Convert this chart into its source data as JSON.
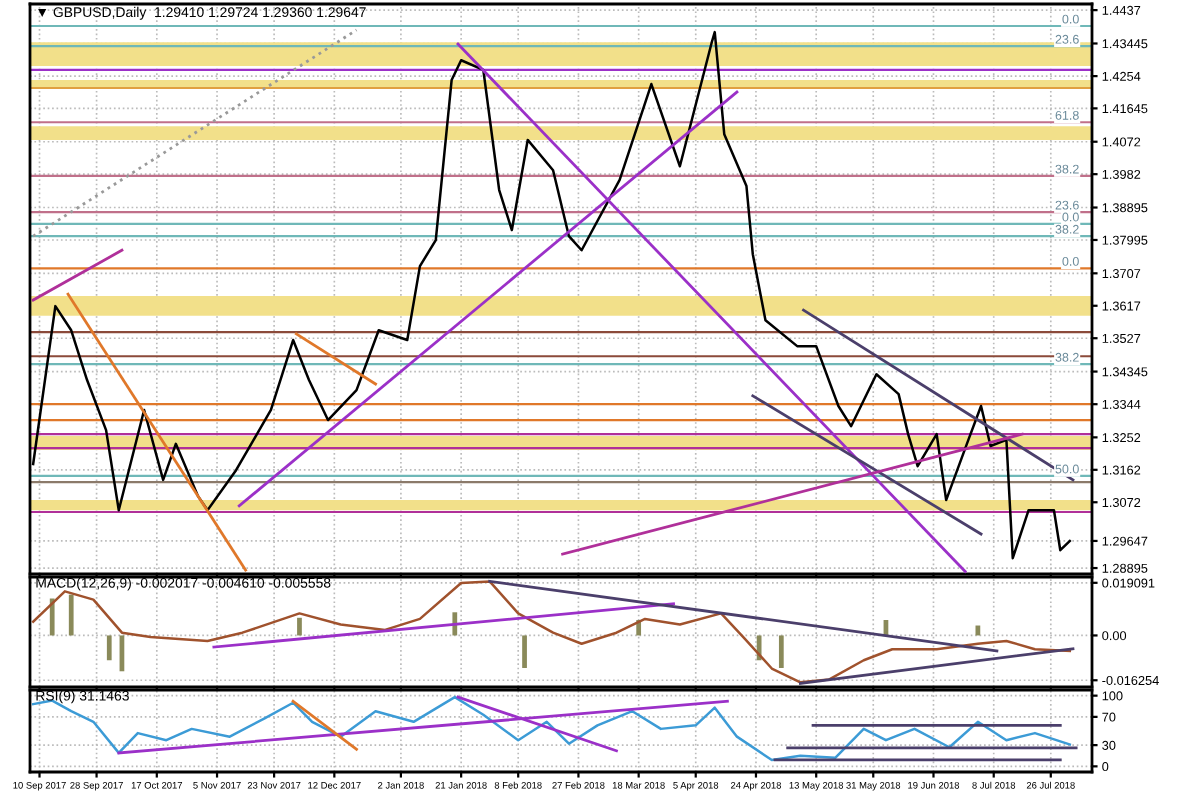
{
  "chart_data": [
    {
      "type": "line",
      "title": "▼ GBPUSD,Daily  1.29410 1.29724 1.29360 1.29647",
      "tick_labels": "y",
      "grid": true,
      "xlim": [
        "2017-09-07",
        "2018-08-08"
      ],
      "xticks": [
        {
          "value": "2017-09-10",
          "label": null
        },
        {
          "value": "2017-09-28",
          "label": null
        },
        {
          "value": "2017-10-17",
          "label": null
        },
        {
          "value": "2017-11-05",
          "label": null
        },
        {
          "value": "2017-11-23",
          "label": null
        },
        {
          "value": "2017-12-12",
          "label": null
        },
        {
          "value": "2018-01-02",
          "label": null
        },
        {
          "value": "2018-01-21",
          "label": null
        },
        {
          "value": "2018-02-08",
          "label": null
        },
        {
          "value": "2018-02-27",
          "label": null
        },
        {
          "value": "2018-03-18",
          "label": null
        },
        {
          "value": "2018-04-05",
          "label": null
        },
        {
          "value": "2018-04-24",
          "label": null
        },
        {
          "value": "2018-05-13",
          "label": null
        },
        {
          "value": "2018-05-31",
          "label": null
        },
        {
          "value": "2018-06-19",
          "label": null
        },
        {
          "value": "2018-07-08",
          "label": null
        },
        {
          "value": "2018-07-26",
          "label": null
        }
      ],
      "ylim": [
        1.2873,
        1.4454
      ],
      "yticks": [
        1.4437,
        1.43445,
        1.4254,
        1.41645,
        1.4072,
        1.3982,
        1.38895,
        1.37995,
        1.3707,
        1.3617,
        1.3527,
        1.34345,
        1.3344,
        1.3252,
        1.3162,
        1.3072,
        {
          "value": 1.29647,
          "label": "1.29647"
        },
        1.28895
      ],
      "series": [
        {
          "type": "line",
          "color": "#000000",
          "x": [
            "2017-09-08",
            "2017-09-15",
            "2017-09-20",
            "2017-09-25",
            "2017-10-01",
            "2017-10-05",
            "2017-10-13",
            "2017-10-19",
            "2017-10-23",
            "2017-10-30",
            "2017-11-02",
            "2017-11-11",
            "2017-11-22",
            "2017-11-29",
            "2017-12-04",
            "2017-12-10",
            "2017-12-19",
            "2017-12-26",
            "2018-01-04",
            "2018-01-08",
            "2018-01-13",
            "2018-01-18",
            "2018-01-21",
            "2018-01-28",
            "2018-02-02",
            "2018-02-06",
            "2018-02-11",
            "2018-02-19",
            "2018-02-24",
            "2018-02-28",
            "2018-03-12",
            "2018-03-22",
            "2018-03-31",
            "2018-04-10",
            "2018-04-11",
            "2018-04-14",
            "2018-04-21",
            "2018-04-23",
            "2018-04-27",
            "2018-05-07",
            "2018-05-13",
            "2018-05-20",
            "2018-05-24",
            "2018-06-01",
            "2018-06-08",
            "2018-06-11",
            "2018-06-14",
            "2018-06-20",
            "2018-06-23",
            "2018-06-30",
            "2018-07-04",
            "2018-07-07",
            "2018-07-12",
            "2018-07-14",
            "2018-07-19",
            "2018-07-27",
            "2018-07-29",
            "2018-08-01"
          ],
          "values": [
            1.3178,
            1.3616,
            1.3549,
            1.3411,
            1.3272,
            1.305,
            1.3328,
            1.3134,
            1.3234,
            1.3089,
            1.305,
            1.3161,
            1.3328,
            1.3522,
            1.3411,
            1.33,
            1.3383,
            1.3549,
            1.3522,
            1.3727,
            1.3799,
            1.4243,
            1.4298,
            1.4271,
            1.3938,
            1.3827,
            1.4077,
            1.3993,
            1.381,
            1.3771,
            1.3966,
            1.4232,
            1.4004,
            1.4346,
            1.4376,
            1.4093,
            1.3949,
            1.376,
            1.3577,
            1.3505,
            1.3505,
            1.3339,
            1.3283,
            1.3427,
            1.3372,
            1.3261,
            1.3172,
            1.3261,
            1.3078,
            1.3245,
            1.3339,
            1.3228,
            1.3245,
            1.2917,
            1.305,
            1.305,
            1.2939,
            1.29647
          ]
        },
        {
          "type": "line",
          "color": "#9b30c8",
          "x": [
            "2017-11-12",
            "2018-04-18"
          ],
          "values": [
            1.3062,
            1.421
          ]
        },
        {
          "type": "line",
          "color": "#9b30c8",
          "x": [
            "2018-01-20",
            "2018-06-29"
          ],
          "values": [
            1.4343,
            1.288
          ]
        },
        {
          "type": "line",
          "color": "#4b3f6b",
          "x": [
            "2018-05-09",
            "2018-08-02"
          ],
          "values": [
            1.3605,
            1.3134
          ]
        },
        {
          "type": "line",
          "color": "#4b3f6b",
          "x": [
            "2018-04-23",
            "2018-07-04"
          ],
          "values": [
            1.3367,
            1.2984
          ]
        },
        {
          "type": "line",
          "color": "#b0309a",
          "x": [
            "2018-02-22",
            "2018-07-17"
          ],
          "values": [
            1.2928,
            1.3261
          ]
        },
        {
          "type": "line",
          "color": "#e0782a",
          "x": [
            "2017-09-19",
            "2017-11-14"
          ],
          "values": [
            1.3649,
            1.2884
          ]
        },
        {
          "type": "line",
          "color": "#e0782a",
          "x": [
            "2017-11-30",
            "2017-12-25"
          ],
          "values": [
            1.3539,
            1.34
          ]
        },
        {
          "type": "line",
          "color": "#b0309a",
          "x": [
            "2017-09-08",
            "2017-10-06"
          ],
          "values": [
            1.3633,
            1.3771
          ]
        },
        {
          "type": "line",
          "color": "#999999",
          "line_style": "dotted",
          "x": [
            "2017-09-08",
            "2017-12-19"
          ],
          "values": [
            1.381,
            1.4382
          ]
        }
      ],
      "bands": [
        {
          "axis": "y",
          "from": 1.4282,
          "to": 1.4348,
          "color": "#f2e08a"
        },
        {
          "axis": "y",
          "from": 1.4221,
          "to": 1.4243,
          "color": "#f2e08a"
        },
        {
          "axis": "y",
          "from": 1.4077,
          "to": 1.4115,
          "color": "#f2e08a"
        },
        {
          "axis": "y",
          "from": 1.3589,
          "to": 1.3644,
          "color": "#f2e08a"
        },
        {
          "axis": "y",
          "from": 1.3217,
          "to": 1.3256,
          "color": "#f2e08a"
        },
        {
          "axis": "y",
          "from": 1.305,
          "to": 1.3078,
          "color": "#f2e08a"
        }
      ],
      "ref_lines": [
        {
          "axis": "y",
          "value": 1.4393,
          "label": null,
          "color": "#6fb8b8"
        },
        {
          "axis": "y",
          "value": 1.4337,
          "label": null,
          "color": "#6fb8b8"
        },
        {
          "axis": "y",
          "value": 1.4271,
          "label": null,
          "color": "#9b30c8"
        },
        {
          "axis": "y",
          "value": 1.4221,
          "label": null,
          "color": "#e0a040"
        },
        {
          "axis": "y",
          "value": 1.4126,
          "label": null,
          "color": "#c0708a"
        },
        {
          "axis": "y",
          "value": 1.3977,
          "label": null,
          "color": "#c0708a"
        },
        {
          "axis": "y",
          "value": 1.3877,
          "label": null,
          "color": "#c0708a"
        },
        {
          "axis": "y",
          "value": 1.3844,
          "label": null,
          "color": "#6fb8b8"
        },
        {
          "axis": "y",
          "value": 1.381,
          "label": null,
          "color": "#6fb8b8"
        },
        {
          "axis": "y",
          "value": 1.3721,
          "label": null,
          "color": "#e0782a"
        },
        {
          "axis": "y",
          "value": 1.3544,
          "label": null,
          "color": "#8b4a3a"
        },
        {
          "axis": "y",
          "value": 1.3477,
          "label": null,
          "color": "#8b4a3a"
        },
        {
          "axis": "y",
          "value": 1.3455,
          "label": null,
          "color": "#6fb8b8"
        },
        {
          "axis": "y",
          "value": 1.3344,
          "label": null,
          "color": "#e0782a"
        },
        {
          "axis": "y",
          "value": 1.33,
          "label": null,
          "color": "#e0782a"
        },
        {
          "axis": "y",
          "value": 1.3261,
          "label": null,
          "color": "#b0309a"
        },
        {
          "axis": "y",
          "value": 1.3222,
          "label": null,
          "color": "#b0309a"
        },
        {
          "axis": "y",
          "value": 1.3145,
          "label": null,
          "color": "#6fb8b8"
        },
        {
          "axis": "y",
          "value": 1.3128,
          "label": null,
          "color": "#8b7a6a"
        },
        {
          "axis": "y",
          "value": 1.3045,
          "label": null,
          "color": "#b0309a"
        }
      ],
      "annotations": [
        {
          "text": "0.0",
          "x": "2018-08-04",
          "y": 1.4393
        },
        {
          "text": "23.6",
          "x": "2018-08-04",
          "y": 1.4337
        },
        {
          "text": "61.8",
          "x": "2018-08-04",
          "y": 1.4126
        },
        {
          "text": "38.2",
          "x": "2018-08-04",
          "y": 1.3977
        },
        {
          "text": "23.6",
          "x": "2018-08-04",
          "y": 1.3877
        },
        {
          "text": "0.0",
          "x": "2018-08-04",
          "y": 1.3844
        },
        {
          "text": "38.2",
          "x": "2018-08-04",
          "y": 1.381
        },
        {
          "text": "0.0",
          "x": "2018-08-04",
          "y": 1.3721
        },
        {
          "text": "38.2",
          "x": "2018-08-04",
          "y": 1.3455
        },
        {
          "text": "50.0",
          "x": "2018-08-04",
          "y": 1.3145
        }
      ]
    },
    {
      "type": "line",
      "title": "MACD(12,26,9) -0.002017 -0.004610 -0.005558",
      "tick_labels": "y",
      "grid": true,
      "xlim": [
        "2017-09-07",
        "2018-08-08"
      ],
      "xticks": [
        {
          "value": "2017-09-10",
          "label": null
        },
        {
          "value": "2017-09-28",
          "label": null
        },
        {
          "value": "2017-10-17",
          "label": null
        },
        {
          "value": "2017-11-05",
          "label": null
        },
        {
          "value": "2017-11-23",
          "label": null
        },
        {
          "value": "2017-12-12",
          "label": null
        },
        {
          "value": "2018-01-02",
          "label": null
        },
        {
          "value": "2018-01-21",
          "label": null
        },
        {
          "value": "2018-02-08",
          "label": null
        },
        {
          "value": "2018-02-27",
          "label": null
        },
        {
          "value": "2018-03-18",
          "label": null
        },
        {
          "value": "2018-04-05",
          "label": null
        },
        {
          "value": "2018-04-24",
          "label": null
        },
        {
          "value": "2018-05-13",
          "label": null
        },
        {
          "value": "2018-05-31",
          "label": null
        },
        {
          "value": "2018-06-19",
          "label": null
        },
        {
          "value": "2018-07-08",
          "label": null
        },
        {
          "value": "2018-07-26",
          "label": null
        }
      ],
      "ylim": [
        -0.0187,
        0.0212
      ],
      "yticks": [
        {
          "value": 0.019091,
          "label": "0.019091"
        },
        {
          "value": 0,
          "label": "0.00"
        },
        {
          "value": -0.016254,
          "label": "-0.016254"
        }
      ],
      "series": [
        {
          "type": "bar",
          "color": "#8a8a5a",
          "x": [
            "2017-09-14",
            "2017-09-20",
            "2017-10-02",
            "2017-10-06",
            "2017-12-01",
            "2018-01-19",
            "2018-02-10",
            "2018-03-18",
            "2018-04-25",
            "2018-05-02",
            "2018-06-04",
            "2018-07-03"
          ],
          "values": [
            0.0134,
            0.0148,
            -0.009,
            -0.013,
            0.0064,
            0.0084,
            -0.0118,
            0.0056,
            -0.009,
            -0.0118,
            0.0056,
            0.0036
          ]
        },
        {
          "type": "line",
          "color": "#a0522d",
          "x": [
            "2017-09-08",
            "2017-09-18",
            "2017-09-27",
            "2017-10-06",
            "2017-10-15",
            "2017-11-02",
            "2017-11-13",
            "2017-12-01",
            "2017-12-14",
            "2017-12-28",
            "2018-01-08",
            "2018-01-21",
            "2018-01-30",
            "2018-02-08",
            "2018-02-19",
            "2018-02-28",
            "2018-03-11",
            "2018-03-20",
            "2018-03-31",
            "2018-04-13",
            "2018-04-20",
            "2018-04-29",
            "2018-05-08",
            "2018-05-17",
            "2018-05-28",
            "2018-06-06",
            "2018-06-20",
            "2018-07-03",
            "2018-07-12",
            "2018-07-21",
            "2018-08-01"
          ],
          "values": [
            0.005,
            0.016,
            0.013,
            0.001,
            -0.0006,
            -0.002,
            0.001,
            0.008,
            0.004,
            0.002,
            0.006,
            0.019,
            0.0196,
            0.008,
            0.001,
            -0.003,
            0.001,
            0.006,
            0.004,
            0.008,
            -0.0006,
            -0.012,
            -0.017,
            -0.016,
            -0.009,
            -0.005,
            -0.005,
            -0.003,
            -0.002,
            -0.005,
            -0.0056
          ]
        },
        {
          "type": "line",
          "color": "#9b30c8",
          "x": [
            "2017-11-04",
            "2018-03-29"
          ],
          "values": [
            -0.0042,
            0.0115
          ]
        },
        {
          "type": "line",
          "color": "#4b3f6b",
          "x": [
            "2018-01-30",
            "2018-07-09"
          ],
          "values": [
            0.0196,
            -0.0056
          ]
        },
        {
          "type": "line",
          "color": "#4b3f6b",
          "x": [
            "2018-05-08",
            "2018-08-02"
          ],
          "values": [
            -0.0174,
            -0.0048
          ]
        }
      ]
    },
    {
      "type": "line",
      "title": "RSI(9) 31.1463",
      "grid": true,
      "xlim": [
        "2017-09-07",
        "2018-08-08"
      ],
      "xticks": [
        {
          "value": "2017-09-10",
          "label": "10 Sep 2017"
        },
        {
          "value": "2017-09-28",
          "label": "28 Sep 2017"
        },
        {
          "value": "2017-10-17",
          "label": "17 Oct 2017"
        },
        {
          "value": "2017-11-05",
          "label": "5 Nov 2017"
        },
        {
          "value": "2017-11-23",
          "label": "23 Nov 2017"
        },
        {
          "value": "2017-12-12",
          "label": "12 Dec 2017"
        },
        {
          "value": "2018-01-02",
          "label": "2 Jan 2018"
        },
        {
          "value": "2018-01-21",
          "label": "21 Jan 2018"
        },
        {
          "value": "2018-02-08",
          "label": "8 Feb 2018"
        },
        {
          "value": "2018-02-27",
          "label": "27 Feb 2018"
        },
        {
          "value": "2018-03-18",
          "label": "18 Mar 2018"
        },
        {
          "value": "2018-04-05",
          "label": "5 Apr 2018"
        },
        {
          "value": "2018-04-24",
          "label": "24 Apr 2018"
        },
        {
          "value": "2018-05-13",
          "label": "13 May 2018"
        },
        {
          "value": "2018-05-31",
          "label": "31 May 2018"
        },
        {
          "value": "2018-06-19",
          "label": "19 Jun 2018"
        },
        {
          "value": "2018-07-08",
          "label": "8 Jul 2018"
        },
        {
          "value": "2018-07-26",
          "label": "26 Jul 2018"
        }
      ],
      "ylim": [
        -8,
        108
      ],
      "yticks": [
        100,
        70,
        30,
        0
      ],
      "series": [
        {
          "type": "line",
          "color": "#3c9bd6",
          "x": [
            "2017-09-08",
            "2017-09-14",
            "2017-09-20",
            "2017-09-27",
            "2017-10-05",
            "2017-10-11",
            "2017-10-20",
            "2017-10-28",
            "2017-11-09",
            "2017-11-20",
            "2017-11-29",
            "2017-12-05",
            "2017-12-14",
            "2017-12-25",
            "2018-01-06",
            "2018-01-19",
            "2018-01-28",
            "2018-02-08",
            "2018-02-17",
            "2018-02-24",
            "2018-03-05",
            "2018-03-16",
            "2018-03-25",
            "2018-04-05",
            "2018-04-11",
            "2018-04-18",
            "2018-04-29",
            "2018-05-08",
            "2018-05-19",
            "2018-05-28",
            "2018-06-04",
            "2018-06-13",
            "2018-06-24",
            "2018-07-03",
            "2018-07-12",
            "2018-07-21",
            "2018-08-01"
          ],
          "values": [
            88,
            93,
            78,
            63,
            19,
            47,
            37,
            53,
            42,
            68,
            90,
            63,
            42,
            78,
            63,
            98,
            73,
            37,
            63,
            32,
            58,
            78,
            53,
            58,
            83,
            42,
            9,
            15,
            12,
            53,
            37,
            53,
            27,
            63,
            37,
            47,
            31
          ]
        },
        {
          "type": "line",
          "color": "#9b30c8",
          "x": [
            "2017-10-05",
            "2018-04-15"
          ],
          "values": [
            19,
            92
          ]
        },
        {
          "type": "line",
          "color": "#9b30c8",
          "x": [
            "2018-01-20",
            "2018-03-11"
          ],
          "values": [
            98,
            22
          ]
        },
        {
          "type": "line",
          "color": "#e0782a",
          "x": [
            "2017-11-29",
            "2017-12-19"
          ],
          "values": [
            92,
            24
          ]
        },
        {
          "type": "line",
          "color": "#4b3f6b",
          "x": [
            "2018-05-12",
            "2018-07-29"
          ],
          "values": [
            58,
            58
          ]
        },
        {
          "type": "line",
          "color": "#4b3f6b",
          "x": [
            "2018-05-04",
            "2018-08-03"
          ],
          "values": [
            26,
            26
          ]
        },
        {
          "type": "line",
          "color": "#4b3f6b",
          "x": [
            "2018-04-30",
            "2018-07-29"
          ],
          "values": [
            9,
            9
          ]
        }
      ]
    }
  ]
}
